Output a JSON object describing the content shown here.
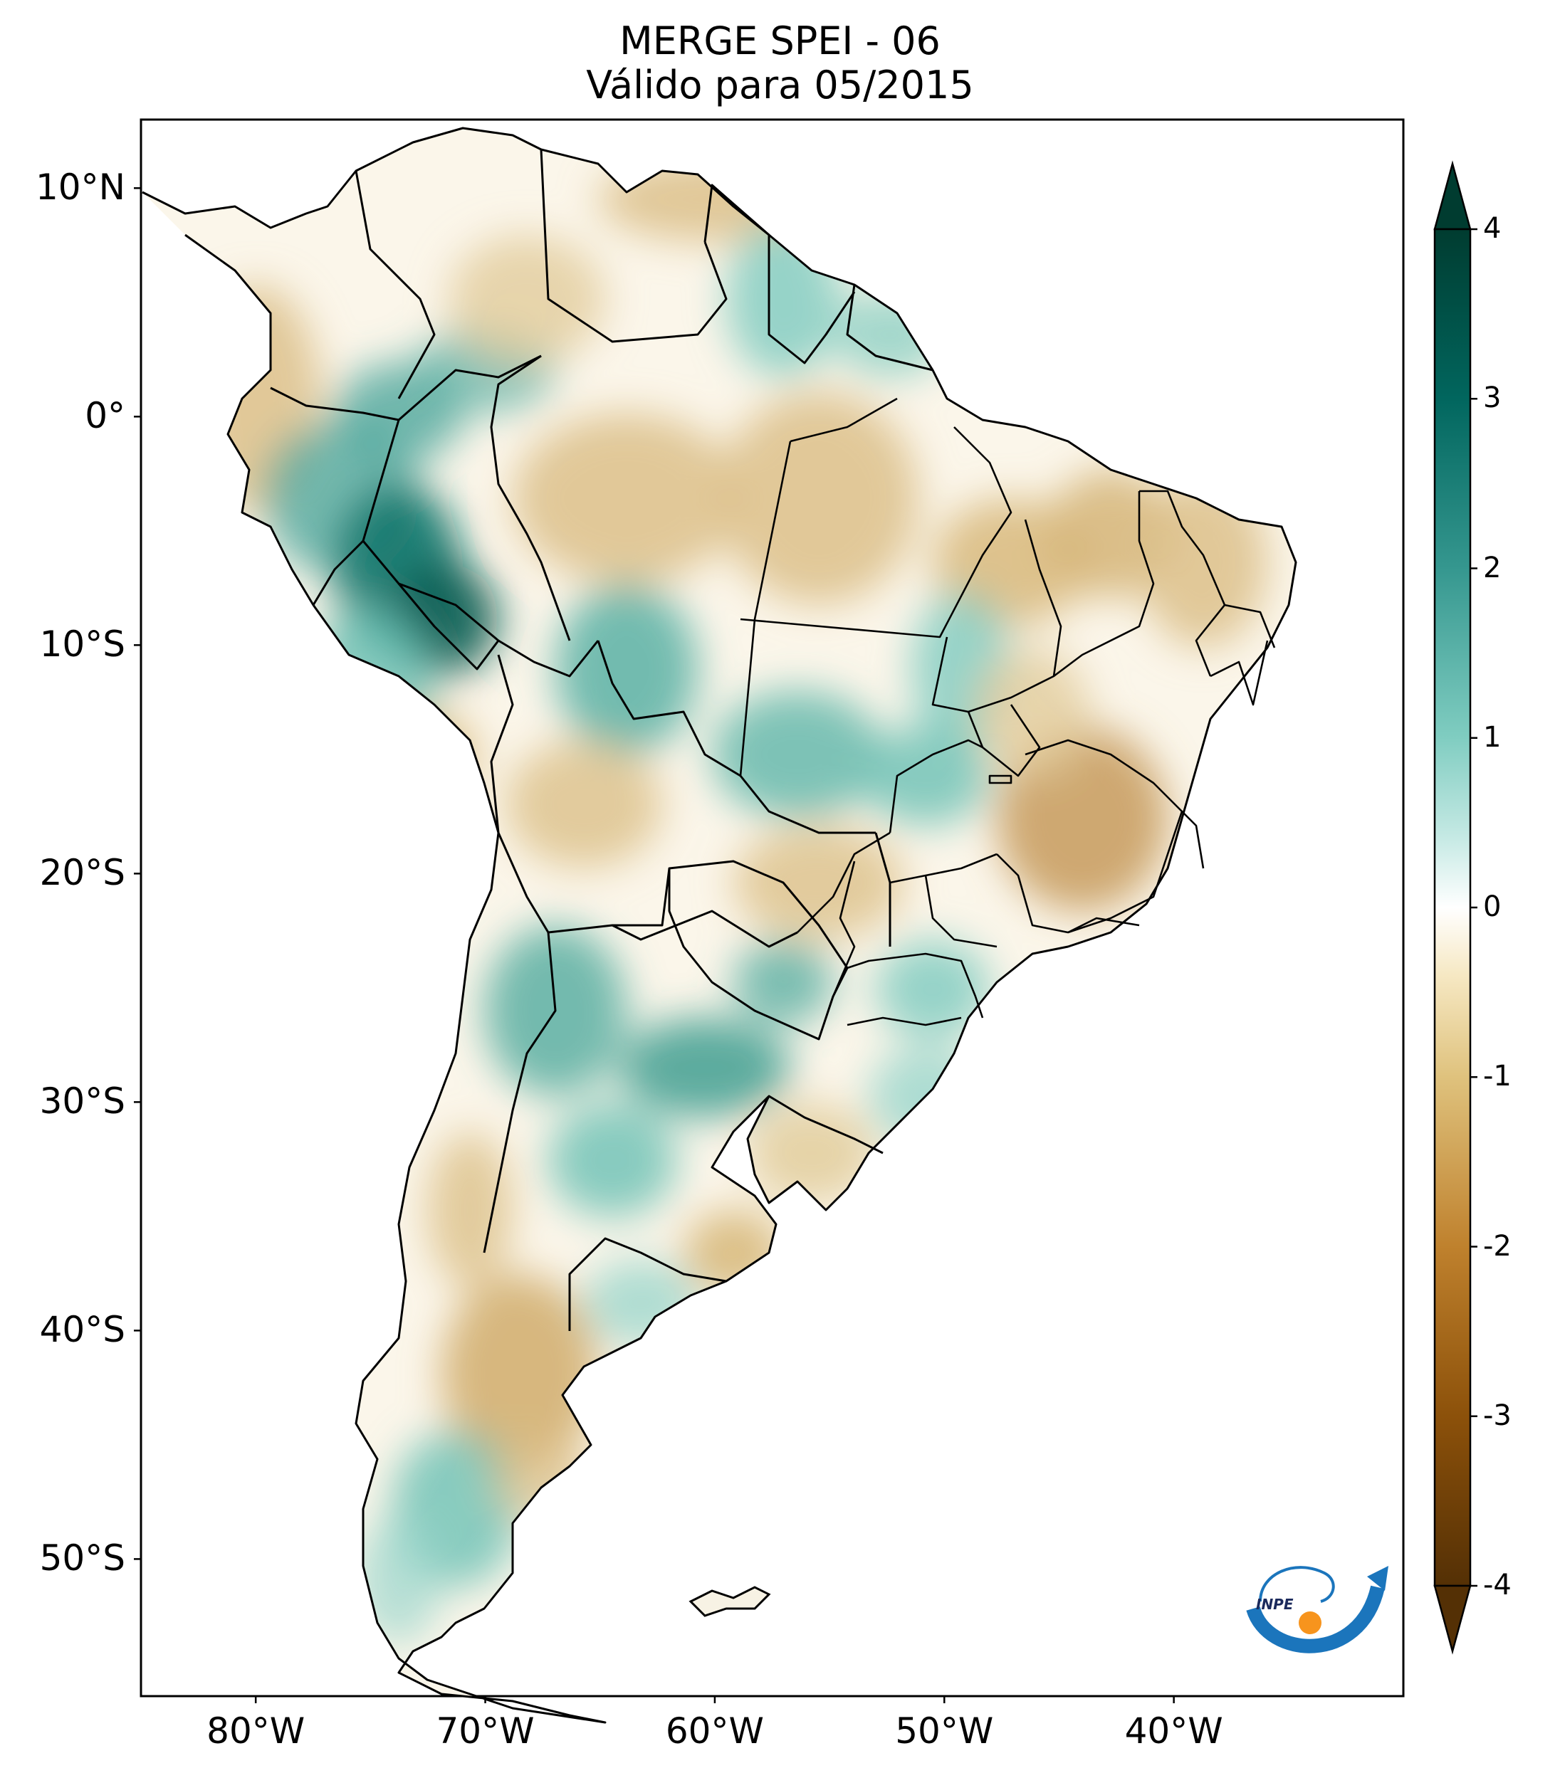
{
  "title": {
    "line1": "MERGE   SPEI - 06",
    "line2": "Válido para 05/2015"
  },
  "map": {
    "lon_range": [
      -85,
      -30
    ],
    "lat_range": [
      -56,
      13
    ],
    "lat_ticks": [
      {
        "value": 10,
        "label": "10°N"
      },
      {
        "value": 0,
        "label": "0°"
      },
      {
        "value": -10,
        "label": "10°S"
      },
      {
        "value": -20,
        "label": "20°S"
      },
      {
        "value": -30,
        "label": "30°S"
      },
      {
        "value": -40,
        "label": "40°S"
      },
      {
        "value": -50,
        "label": "50°S"
      }
    ],
    "lon_ticks": [
      {
        "value": -80,
        "label": "80°W"
      },
      {
        "value": -70,
        "label": "70°W"
      },
      {
        "value": -60,
        "label": "60°W"
      },
      {
        "value": -50,
        "label": "50°W"
      },
      {
        "value": -40,
        "label": "40°W"
      }
    ],
    "colorbar": {
      "min": -4,
      "max": 4,
      "ticks": [
        {
          "value": 4,
          "label": "4"
        },
        {
          "value": 3,
          "label": "3"
        },
        {
          "value": 2,
          "label": "2"
        },
        {
          "value": 1,
          "label": "1"
        },
        {
          "value": 0,
          "label": "0"
        },
        {
          "value": -1,
          "label": "-1"
        },
        {
          "value": -2,
          "label": "-2"
        },
        {
          "value": -3,
          "label": "-3"
        },
        {
          "value": -4,
          "label": "-4"
        }
      ],
      "colors": [
        "#543005",
        "#8c510a",
        "#bf812d",
        "#dfc27d",
        "#f6e8c3",
        "#ffffff",
        "#c7eae5",
        "#80cdc1",
        "#35978f",
        "#01665e",
        "#003c30"
      ],
      "extend": "both"
    },
    "logo": {
      "text": "INPE",
      "colors": {
        "arc": "#1b75bc",
        "dot": "#f7941d"
      }
    }
  }
}
